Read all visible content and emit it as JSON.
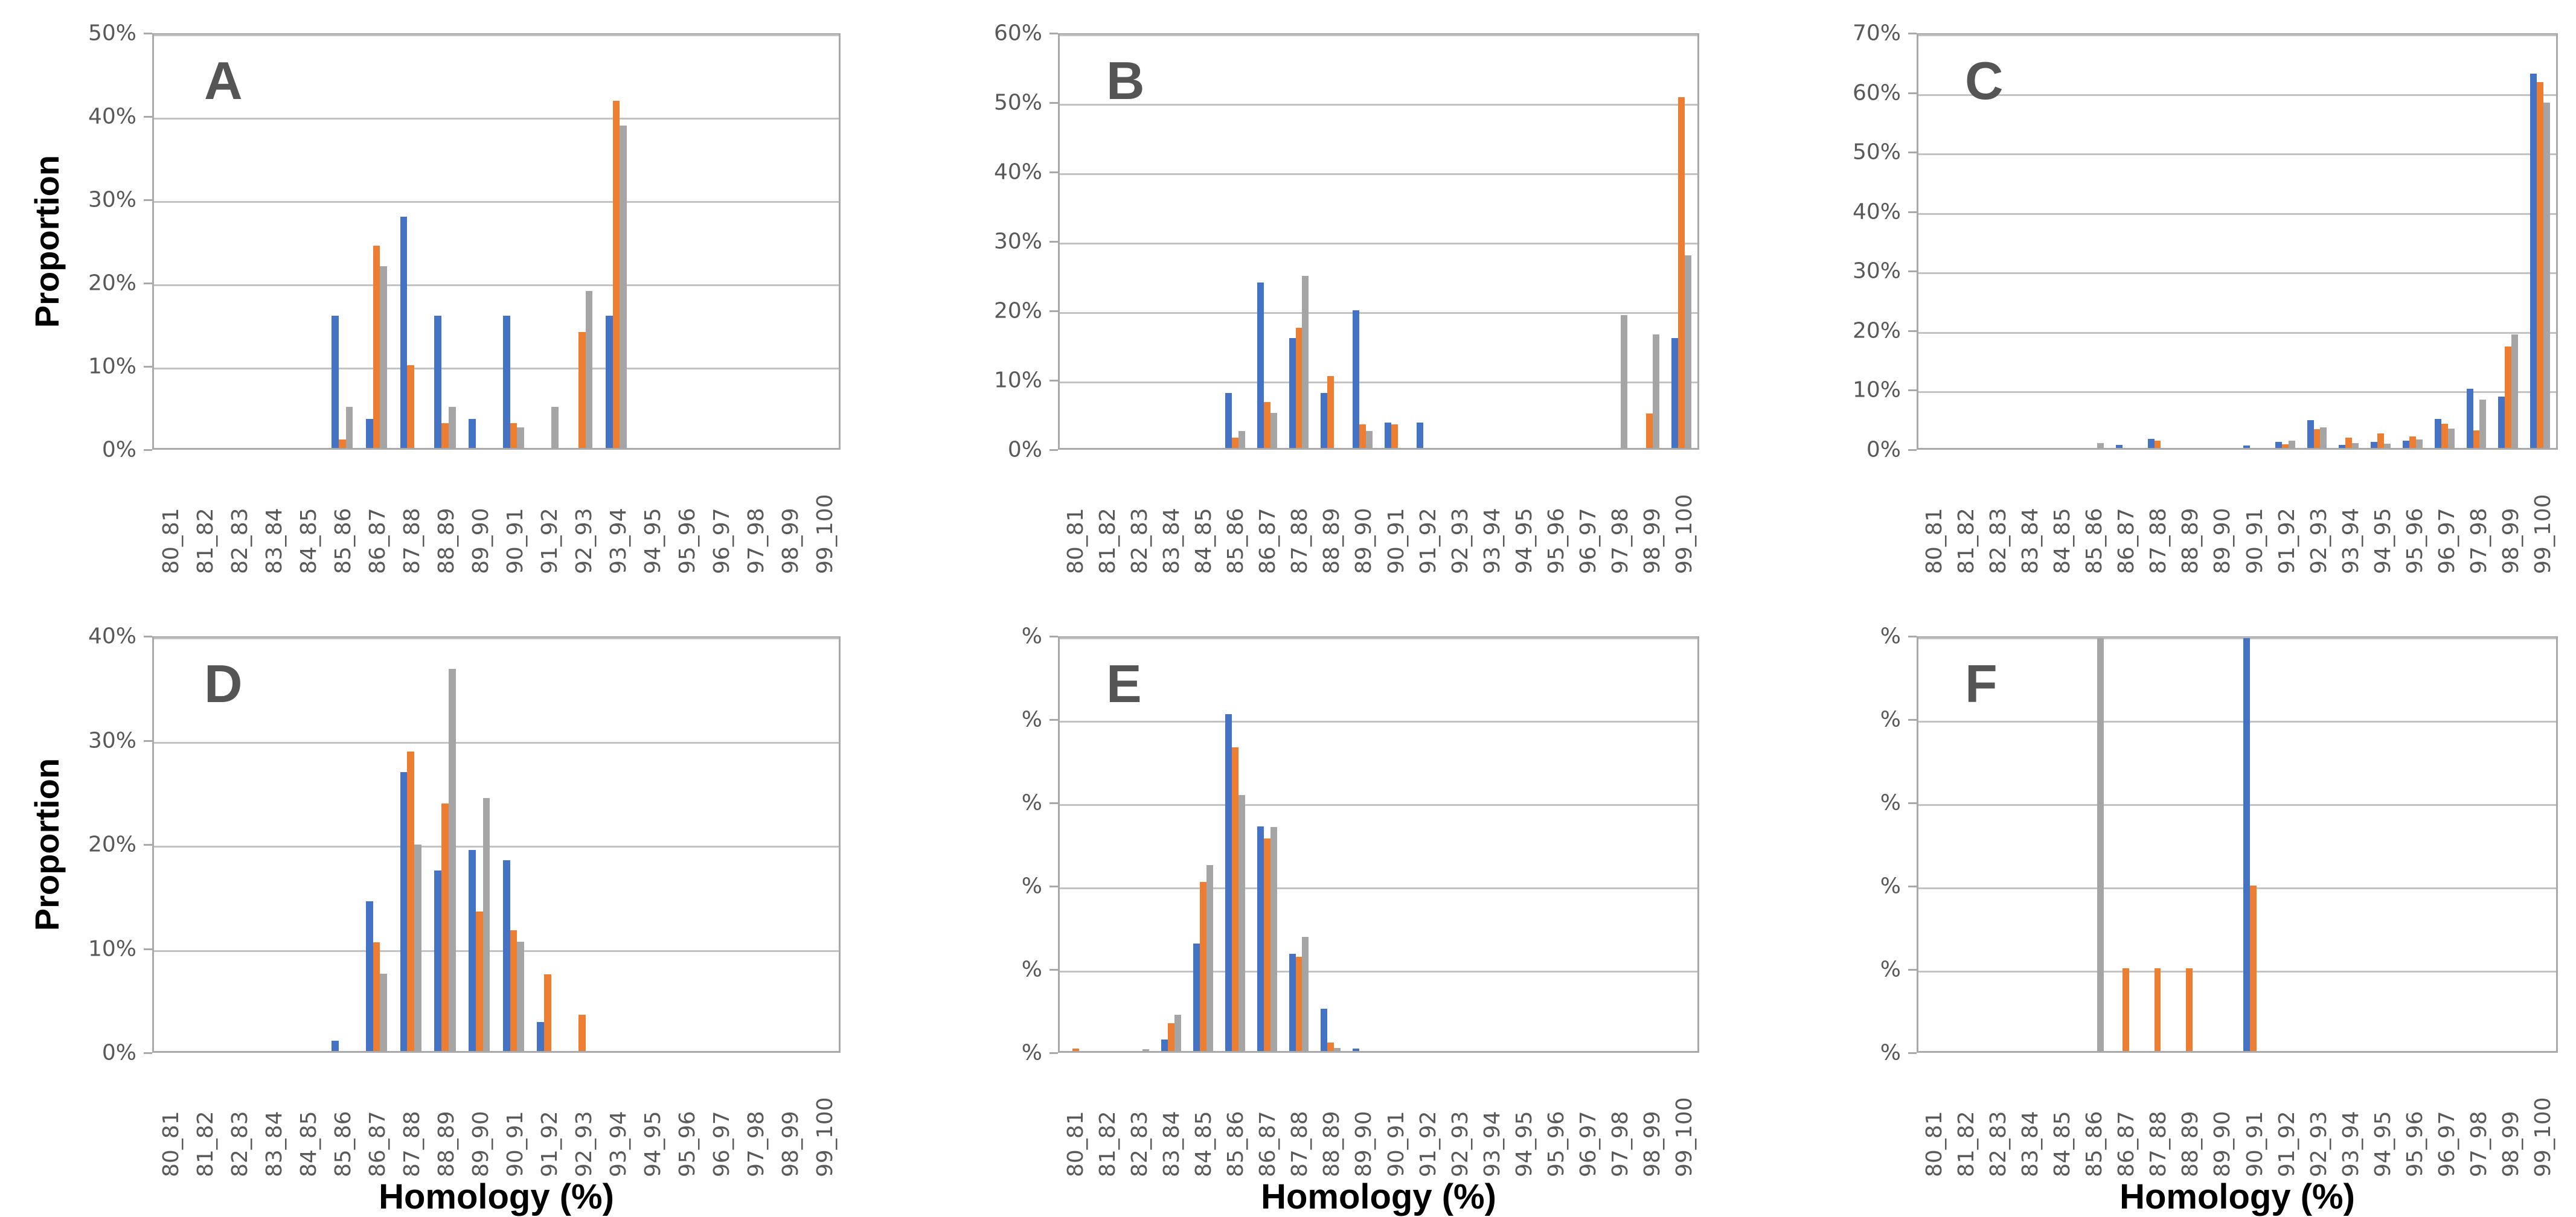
{
  "figure": {
    "y_axis_title": "Proportion",
    "x_axis_title": "Homology (%)"
  },
  "series_colors": {
    "blue": "#4472C4",
    "orange": "#ED7D31",
    "gray": "#A5A5A5"
  },
  "chart_data": [
    {
      "type": "bar",
      "panel_label": "A",
      "ylabel": "Proportion",
      "xlabel": "",
      "ylim": [
        0,
        50
      ],
      "ytick_labels": [
        "0%",
        "10%",
        "20%",
        "30%",
        "40%",
        "50%"
      ],
      "grid": true,
      "legend": "none",
      "categories": [
        "80_81",
        "81_82",
        "82_83",
        "83_84",
        "84_85",
        "85_86",
        "86_87",
        "87_88",
        "88_89",
        "89_90",
        "90_91",
        "91_92",
        "92_93",
        "93_94",
        "94_95",
        "95_96",
        "96_97",
        "97_98",
        "98_99",
        "99_100"
      ],
      "series": [
        {
          "name": "blue",
          "color": "#4472C4",
          "values": [
            0,
            0,
            0,
            0,
            0,
            16,
            3.5,
            28,
            16,
            3.5,
            16,
            0,
            0,
            16,
            0,
            0,
            0,
            0,
            0,
            0
          ]
        },
        {
          "name": "orange",
          "color": "#ED7D31",
          "values": [
            0,
            0,
            0,
            0,
            0,
            1,
            24.5,
            10,
            3,
            0,
            3,
            0,
            14,
            42,
            0,
            0,
            0,
            0,
            0,
            0
          ]
        },
        {
          "name": "gray",
          "color": "#A5A5A5",
          "values": [
            0,
            0,
            0,
            0,
            0,
            5,
            22,
            0,
            5,
            0,
            2.5,
            5,
            19,
            39,
            0,
            0,
            0,
            0,
            0,
            0
          ]
        }
      ]
    },
    {
      "type": "bar",
      "panel_label": "B",
      "ylabel": "",
      "xlabel": "",
      "ylim": [
        0,
        60
      ],
      "ytick_labels": [
        "0%",
        "10%",
        "20%",
        "30%",
        "40%",
        "50%",
        "60%"
      ],
      "grid": true,
      "legend": "none",
      "categories": [
        "80_81",
        "81_82",
        "82_83",
        "83_84",
        "84_85",
        "85_86",
        "86_87",
        "87_88",
        "88_89",
        "89_90",
        "90_91",
        "91_92",
        "92_93",
        "93_94",
        "94_95",
        "95_96",
        "96_97",
        "97_98",
        "98_99",
        "99_100"
      ],
      "series": [
        {
          "name": "blue",
          "color": "#4472C4",
          "values": [
            0,
            0,
            0,
            0,
            0,
            8,
            24,
            16,
            8,
            20,
            3.7,
            3.7,
            0,
            0,
            0,
            0,
            0,
            0,
            0,
            16
          ]
        },
        {
          "name": "orange",
          "color": "#ED7D31",
          "values": [
            0,
            0,
            0,
            0,
            0,
            1.5,
            6.7,
            17.5,
            10.4,
            3.4,
            3.4,
            0,
            0,
            0,
            0,
            0,
            0,
            0,
            5,
            51
          ]
        },
        {
          "name": "gray",
          "color": "#A5A5A5",
          "values": [
            0,
            0,
            0,
            0,
            0,
            2.5,
            5.1,
            25,
            0,
            2.5,
            0,
            0,
            0,
            0,
            0,
            0,
            0,
            19.3,
            16.5,
            28
          ]
        }
      ]
    },
    {
      "type": "bar",
      "panel_label": "C",
      "ylabel": "",
      "xlabel": "",
      "ylim": [
        0,
        70
      ],
      "ytick_labels": [
        "0%",
        "10%",
        "20%",
        "30%",
        "40%",
        "50%",
        "60%",
        "70%"
      ],
      "grid": true,
      "legend": "none",
      "categories": [
        "80_81",
        "81_82",
        "82_83",
        "83_84",
        "84_85",
        "85_86",
        "86_87",
        "87_88",
        "88_89",
        "89_90",
        "90_91",
        "91_92",
        "92_93",
        "93_94",
        "94_95",
        "95_96",
        "96_97",
        "97_98",
        "98_99",
        "99_100"
      ],
      "series": [
        {
          "name": "blue",
          "color": "#4472C4",
          "values": [
            0,
            0,
            0,
            0,
            0,
            0,
            0.5,
            1.5,
            0,
            0,
            0.4,
            1,
            4.7,
            0.5,
            1,
            1.2,
            4.9,
            10,
            8.7,
            63.5
          ]
        },
        {
          "name": "orange",
          "color": "#ED7D31",
          "values": [
            0,
            0,
            0,
            0,
            0,
            0,
            0,
            1.2,
            0,
            0,
            0,
            0.6,
            3.2,
            1.7,
            2.5,
            1.9,
            4.1,
            3,
            17.2,
            62
          ]
        },
        {
          "name": "gray",
          "color": "#A5A5A5",
          "values": [
            0,
            0,
            0,
            0,
            0,
            0.8,
            0,
            0,
            0,
            0,
            0,
            1.2,
            3.5,
            0.8,
            0.7,
            1.4,
            3.3,
            8.2,
            19.2,
            58.5
          ]
        }
      ]
    },
    {
      "type": "bar",
      "panel_label": "D",
      "ylabel": "Proportion",
      "xlabel": "Homology (%)",
      "ylim": [
        0,
        40
      ],
      "ytick_labels": [
        "0%",
        "10%",
        "20%",
        "30%",
        "40%"
      ],
      "grid": true,
      "legend": "none",
      "categories": [
        "80_81",
        "81_82",
        "82_83",
        "83_84",
        "84_85",
        "85_86",
        "86_87",
        "87_88",
        "88_89",
        "89_90",
        "90_91",
        "91_92",
        "92_93",
        "93_94",
        "94_95",
        "95_96",
        "96_97",
        "97_98",
        "98_99",
        "99_100"
      ],
      "series": [
        {
          "name": "blue",
          "color": "#4472C4",
          "values": [
            0,
            0,
            0,
            0,
            0,
            1,
            14.5,
            27,
            17.5,
            19.5,
            18.5,
            2.8,
            0,
            0,
            0,
            0,
            0,
            0,
            0,
            0
          ]
        },
        {
          "name": "orange",
          "color": "#ED7D31",
          "values": [
            0,
            0,
            0,
            0,
            0,
            0,
            10.5,
            29,
            24,
            13.5,
            11.7,
            7.4,
            3.5,
            0,
            0,
            0,
            0,
            0,
            0,
            0
          ]
        },
        {
          "name": "gray",
          "color": "#A5A5A5",
          "values": [
            0,
            0,
            0,
            0,
            0,
            0,
            7.5,
            20,
            37,
            24.5,
            10.6,
            0,
            0,
            0,
            0,
            0,
            0,
            0,
            0,
            0
          ]
        }
      ]
    },
    {
      "type": "bar",
      "panel_label": "E",
      "ylabel": "",
      "xlabel": "Homology (%)",
      "ylim": [
        0,
        50
      ],
      "ytick_labels": [
        "%",
        "%",
        "%",
        "%",
        "%",
        "%"
      ],
      "grid": true,
      "legend": "none",
      "categories": [
        "80_81",
        "81_82",
        "82_83",
        "83_84",
        "84_85",
        "85_86",
        "86_87",
        "87_88",
        "88_89",
        "89_90",
        "90_91",
        "91_92",
        "92_93",
        "93_94",
        "94_95",
        "95_96",
        "96_97",
        "97_98",
        "98_99",
        "99_100"
      ],
      "series": [
        {
          "name": "blue",
          "color": "#4472C4",
          "values": [
            0,
            0,
            0,
            1.4,
            13,
            40.8,
            27.2,
            11.8,
            5.1,
            0.3,
            0,
            0,
            0,
            0,
            0,
            0,
            0,
            0,
            0,
            0
          ]
        },
        {
          "name": "orange",
          "color": "#ED7D31",
          "values": [
            0.3,
            0,
            0,
            3.4,
            20.5,
            36.8,
            25.7,
            11.4,
            1,
            0,
            0,
            0,
            0,
            0,
            0,
            0,
            0,
            0,
            0,
            0
          ]
        },
        {
          "name": "gray",
          "color": "#A5A5A5",
          "values": [
            0,
            0,
            0.2,
            4.4,
            22.5,
            31,
            27.1,
            13.8,
            0.4,
            0,
            0,
            0,
            0,
            0,
            0,
            0,
            0,
            0,
            0,
            0
          ]
        }
      ]
    },
    {
      "type": "bar",
      "panel_label": "F",
      "ylabel": "",
      "xlabel": "Homology (%)",
      "ylim": [
        0,
        100
      ],
      "ytick_labels": [
        "%",
        "%",
        "%",
        "%",
        "%",
        "%"
      ],
      "grid": true,
      "legend": "none",
      "categories": [
        "80_81",
        "81_82",
        "82_83",
        "83_84",
        "84_85",
        "85_86",
        "86_87",
        "87_88",
        "88_89",
        "89_90",
        "90_91",
        "91_92",
        "92_93",
        "93_94",
        "94_95",
        "95_96",
        "96_97",
        "97_98",
        "98_99",
        "99_100"
      ],
      "series": [
        {
          "name": "blue",
          "color": "#4472C4",
          "values": [
            0,
            0,
            0,
            0,
            0,
            0,
            0,
            0,
            0,
            0,
            100,
            0,
            0,
            0,
            0,
            0,
            0,
            0,
            0,
            0
          ]
        },
        {
          "name": "orange",
          "color": "#ED7D31",
          "values": [
            0,
            0,
            0,
            0,
            0,
            0,
            20,
            20,
            20,
            0,
            40,
            0,
            0,
            0,
            0,
            0,
            0,
            0,
            0,
            0
          ]
        },
        {
          "name": "gray",
          "color": "#A5A5A5",
          "values": [
            0,
            0,
            0,
            0,
            0,
            100,
            0,
            0,
            0,
            0,
            0,
            0,
            0,
            0,
            0,
            0,
            0,
            0,
            0,
            0
          ]
        }
      ]
    }
  ]
}
